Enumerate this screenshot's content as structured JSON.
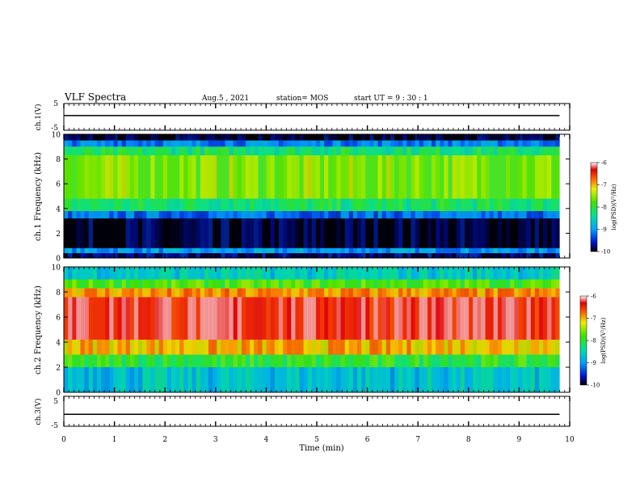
{
  "header": {
    "title": "VLF Spectra",
    "date": "Aug.5 , 2021",
    "station": "station= MOS",
    "start": "start UT = 9 : 30 : 1"
  },
  "chart_data": [
    {
      "type": "line",
      "panel": "ch1-voltage",
      "ylabel": "ch.1(V)",
      "yticks": [
        "5",
        "-5"
      ],
      "ylim": [
        -5,
        5
      ],
      "xlim": [
        0,
        10
      ],
      "series": [
        {
          "x": [
            0,
            9.8
          ],
          "values": [
            0.5,
            0.5
          ]
        }
      ]
    },
    {
      "type": "heatmap",
      "panel": "ch1-spectrogram",
      "ylabel": "ch.1 Frequency (kHz)",
      "yticks": [
        "0",
        "2",
        "4",
        "6",
        "8",
        "10"
      ],
      "ylim": [
        0,
        10
      ],
      "xlim": [
        0,
        10
      ],
      "data_end_min": 9.8,
      "colorbar": {
        "label": "log(PSD)(V²/Hz)",
        "ticks": [
          "-6",
          "-7",
          "-8",
          "-9",
          "-10"
        ],
        "range": [
          -10,
          -6
        ]
      },
      "bands": [
        {
          "from_khz": 0,
          "to_khz": 0.4,
          "level": -9.8
        },
        {
          "from_khz": 0.4,
          "to_khz": 0.8,
          "level": -9.0
        },
        {
          "from_khz": 0.8,
          "to_khz": 3.2,
          "level": -9.95
        },
        {
          "from_khz": 3.2,
          "to_khz": 3.8,
          "level": -9.2
        },
        {
          "from_khz": 3.8,
          "to_khz": 4.8,
          "level": -8.2
        },
        {
          "from_khz": 4.8,
          "to_khz": 8.3,
          "level": -7.6
        },
        {
          "from_khz": 8.3,
          "to_khz": 9.0,
          "level": -8.2
        },
        {
          "from_khz": 9.0,
          "to_khz": 9.5,
          "level": -9.1
        },
        {
          "from_khz": 9.5,
          "to_khz": 10,
          "level": -9.95
        }
      ]
    },
    {
      "type": "heatmap",
      "panel": "ch2-spectrogram",
      "ylabel": "ch.2 Frequency (kHz)",
      "yticks": [
        "0",
        "2",
        "4",
        "6",
        "8",
        "10"
      ],
      "ylim": [
        0,
        10
      ],
      "xlim": [
        0,
        10
      ],
      "data_end_min": 9.8,
      "colorbar": {
        "label": "log(PSD)(V²/Hz)",
        "ticks": [
          "-6",
          "-7",
          "-8",
          "-9",
          "-10"
        ],
        "range": [
          -10,
          -6
        ]
      },
      "bands": [
        {
          "from_khz": 0,
          "to_khz": 2.0,
          "level": -8.7
        },
        {
          "from_khz": 2.0,
          "to_khz": 3.0,
          "level": -8.0
        },
        {
          "from_khz": 3.0,
          "to_khz": 4.2,
          "level": -7.0
        },
        {
          "from_khz": 4.2,
          "to_khz": 7.6,
          "level": -6.3
        },
        {
          "from_khz": 7.6,
          "to_khz": 8.3,
          "level": -6.9
        },
        {
          "from_khz": 8.3,
          "to_khz": 9.0,
          "level": -7.8
        },
        {
          "from_khz": 9.0,
          "to_khz": 10,
          "level": -8.6
        }
      ]
    },
    {
      "type": "line",
      "panel": "ch3-voltage",
      "ylabel": "ch.3(V)",
      "yticks": [
        "5",
        "-5"
      ],
      "ylim": [
        -5,
        5
      ],
      "xlim": [
        0,
        10
      ],
      "xlabel": "Time (min)",
      "xticks": [
        "0",
        "1",
        "2",
        "3",
        "4",
        "5",
        "6",
        "7",
        "8",
        "9",
        "10"
      ],
      "series": [
        {
          "x": [
            0,
            9.8
          ],
          "values": [
            -1.0,
            -1.0
          ]
        }
      ]
    }
  ]
}
